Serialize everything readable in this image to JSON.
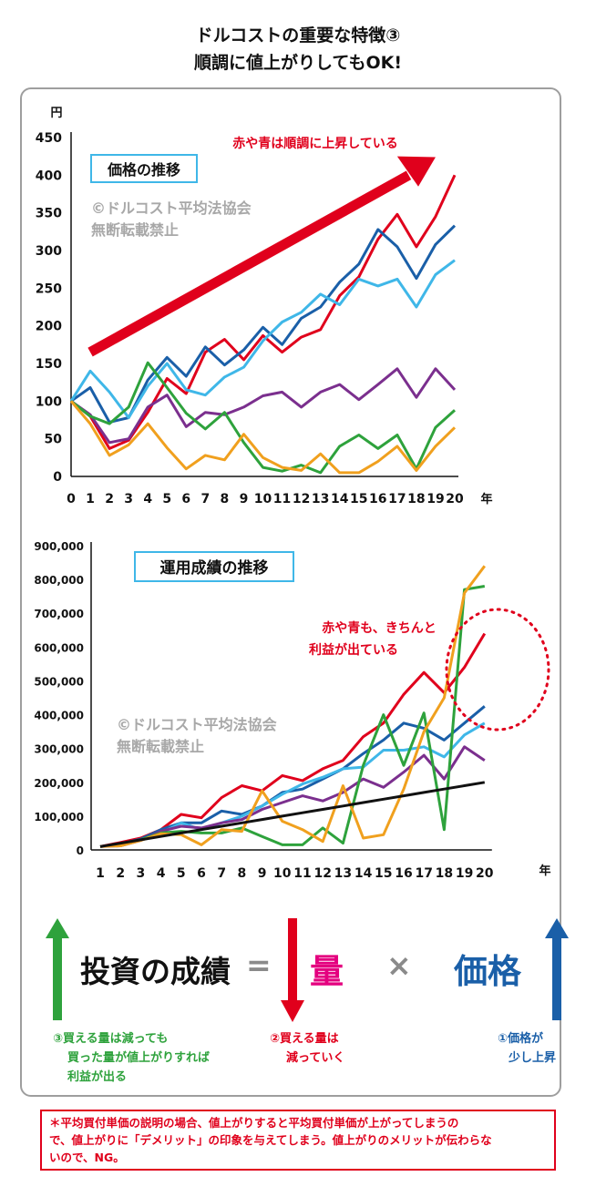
{
  "title_line1": "ドルコストの重要な特徴③",
  "title_line2": "順調に値上がりしてもOK!",
  "copyright_line1": "©ドルコスト平均法協会",
  "copyright_line2": "無断転載禁止",
  "colors": {
    "red": "#e0001c",
    "blue": "#1a5fa8",
    "cyan": "#3fb7e8",
    "purple": "#7b2f8e",
    "green": "#2ea23c",
    "orange": "#f0a01e",
    "black": "#111111",
    "pink": "#e4007f"
  },
  "chart_data": [
    {
      "type": "line",
      "title": "価格の推移",
      "ylabel": "円",
      "xlabel": "年",
      "ylim": [
        0,
        450
      ],
      "yticks": [
        0,
        50,
        100,
        150,
        200,
        250,
        300,
        350,
        400,
        450
      ],
      "x": [
        0,
        1,
        2,
        3,
        4,
        5,
        6,
        7,
        8,
        9,
        10,
        11,
        12,
        13,
        14,
        15,
        16,
        17,
        18,
        19,
        20
      ],
      "annotation": "赤や青は順調に上昇している",
      "series": [
        {
          "color": "red",
          "values": [
            100,
            80,
            37,
            48,
            85,
            130,
            110,
            165,
            182,
            155,
            187,
            165,
            185,
            195,
            240,
            265,
            315,
            348,
            305,
            345,
            400
          ]
        },
        {
          "color": "blue",
          "values": [
            100,
            118,
            72,
            78,
            128,
            158,
            133,
            172,
            148,
            168,
            198,
            175,
            210,
            225,
            258,
            282,
            328,
            305,
            263,
            308,
            333
          ]
        },
        {
          "color": "cyan",
          "values": [
            100,
            140,
            112,
            78,
            120,
            150,
            115,
            108,
            132,
            145,
            180,
            205,
            218,
            242,
            228,
            262,
            253,
            262,
            225,
            268,
            287
          ]
        },
        {
          "color": "purple",
          "values": [
            100,
            82,
            45,
            50,
            92,
            108,
            66,
            85,
            82,
            92,
            107,
            112,
            92,
            112,
            122,
            102,
            122,
            143,
            105,
            143,
            115
          ]
        },
        {
          "color": "green",
          "values": [
            100,
            80,
            70,
            92,
            151,
            118,
            84,
            63,
            85,
            45,
            12,
            7,
            15,
            5,
            40,
            55,
            37,
            55,
            10,
            65,
            88
          ]
        },
        {
          "color": "orange",
          "values": [
            100,
            70,
            28,
            42,
            70,
            38,
            10,
            28,
            22,
            56,
            25,
            12,
            8,
            30,
            5,
            5,
            20,
            40,
            8,
            40,
            65
          ]
        }
      ]
    },
    {
      "type": "line",
      "title": "運用成績の推移",
      "xlabel": "年",
      "ylim": [
        0,
        900000
      ],
      "yticks": [
        "0",
        "100,000",
        "200,000",
        "300,000",
        "400,000",
        "500,000",
        "600,000",
        "700,000",
        "800,000",
        "900,000"
      ],
      "x": [
        1,
        2,
        3,
        4,
        5,
        6,
        7,
        8,
        9,
        10,
        11,
        12,
        13,
        14,
        15,
        16,
        17,
        18,
        19,
        20
      ],
      "annotation_line1": "赤や青も、きちんと",
      "annotation_line2": "利益が出ている",
      "series": [
        {
          "color": "red",
          "values": [
            10000,
            22000,
            35000,
            60000,
            105000,
            95000,
            155000,
            190000,
            175000,
            220000,
            205000,
            240000,
            265000,
            335000,
            375000,
            460000,
            525000,
            465000,
            540000,
            640000
          ]
        },
        {
          "color": "blue",
          "values": [
            10000,
            18000,
            32000,
            60000,
            80000,
            80000,
            115000,
            105000,
            130000,
            170000,
            180000,
            210000,
            240000,
            285000,
            325000,
            375000,
            360000,
            325000,
            375000,
            425000
          ]
        },
        {
          "color": "cyan",
          "values": [
            10000,
            14000,
            30000,
            50000,
            80000,
            60000,
            80000,
            100000,
            130000,
            165000,
            195000,
            215000,
            240000,
            245000,
            295000,
            295000,
            305000,
            275000,
            340000,
            375000
          ]
        },
        {
          "color": "purple",
          "values": [
            10000,
            12000,
            28000,
            55000,
            70000,
            65000,
            80000,
            90000,
            120000,
            140000,
            160000,
            145000,
            170000,
            210000,
            185000,
            230000,
            280000,
            210000,
            305000,
            265000
          ]
        },
        {
          "color": "green",
          "values": [
            10000,
            15000,
            30000,
            50000,
            55000,
            50000,
            50000,
            65000,
            40000,
            15000,
            15000,
            65000,
            20000,
            250000,
            400000,
            250000,
            405000,
            60000,
            770000,
            780000
          ]
        },
        {
          "color": "orange",
          "values": [
            10000,
            12000,
            28000,
            48000,
            45000,
            15000,
            60000,
            55000,
            175000,
            85000,
            60000,
            25000,
            190000,
            35000,
            45000,
            180000,
            350000,
            450000,
            760000,
            840000
          ]
        },
        {
          "color": "black",
          "values": [
            10000,
            20000,
            30000,
            40000,
            50000,
            60000,
            70000,
            80000,
            90000,
            100000,
            110000,
            120000,
            130000,
            140000,
            150000,
            160000,
            170000,
            180000,
            190000,
            200000
          ]
        }
      ]
    }
  ],
  "formula": {
    "investment": "投資の成績",
    "equals": "=",
    "quantity": "量",
    "times": "×",
    "price": "価格"
  },
  "captions": {
    "left_1": "③買える量は減っても",
    "left_2": "買った量が値上がりすれば",
    "left_3": "利益が出る",
    "mid_1": "②買える量は",
    "mid_2": "減っていく",
    "right_1": "①価格が",
    "right_2": "少し上昇"
  },
  "note_line1": "＊平均買付単価の説明の場合、値上がりすると平均買付単価が上がってしまうの",
  "note_line2": "で、値上がりに「デメリット」の印象を与えてしまう。値上がりのメリットが伝わらな",
  "note_line3": "いので、NG。"
}
